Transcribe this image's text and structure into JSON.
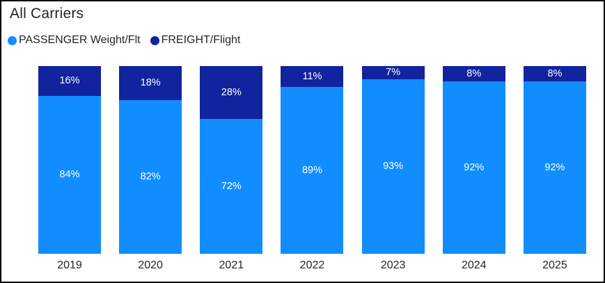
{
  "title": "All Carriers",
  "legend": [
    {
      "label": "PASSENGER Weight/Flt",
      "color": "#118DFF"
    },
    {
      "label": "FREIGHT/Flight",
      "color": "#12239E"
    }
  ],
  "colors": {
    "passenger": "#118DFF",
    "freight": "#12239E",
    "text": "#252423",
    "data_label": "#ffffff",
    "frame_border": "#000000",
    "background": "#ffffff"
  },
  "chart_data": {
    "type": "bar",
    "subtype": "stacked-100-percent-column",
    "title": "All Carriers",
    "categories": [
      "2019",
      "2020",
      "2021",
      "2022",
      "2023",
      "2024",
      "2025"
    ],
    "series": [
      {
        "name": "PASSENGER Weight/Flt",
        "color": "#118DFF",
        "values": [
          84,
          82,
          72,
          89,
          93,
          92,
          92
        ]
      },
      {
        "name": "FREIGHT/Flight",
        "color": "#12239E",
        "values": [
          16,
          18,
          28,
          11,
          7,
          8,
          8
        ]
      }
    ],
    "value_suffix": "%",
    "data_labels": true,
    "xlabel": "",
    "ylabel": "",
    "ylim": [
      0,
      100
    ],
    "grid": false,
    "y_axis_visible": false,
    "legend_position": "top-left"
  }
}
